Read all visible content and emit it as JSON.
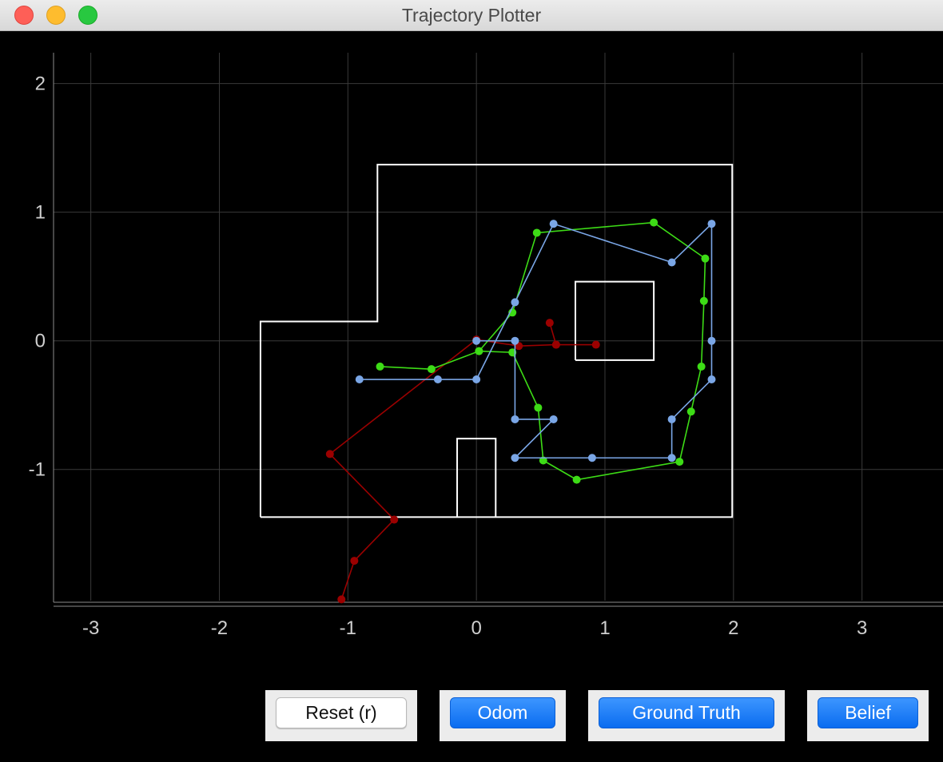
{
  "window": {
    "title": "Trajectory Plotter"
  },
  "buttons": {
    "reset": "Reset (r)",
    "odom": "Odom",
    "ground_truth": "Ground Truth",
    "belief": "Belief"
  },
  "colors": {
    "odom": "#9b0000",
    "ground_truth": "#3ddc16",
    "belief": "#7aa6e6",
    "map": "#ffffff",
    "grid": "#3a3a3a",
    "tick_text": "#cfcfcf"
  },
  "chart_data": {
    "type": "line",
    "title": "",
    "xlabel": "",
    "ylabel": "",
    "grid": true,
    "x_ticks": [
      "-3",
      "-2",
      "-1",
      "0",
      "1",
      "2",
      "3"
    ],
    "y_ticks": [
      "2",
      "1",
      "0",
      "-1"
    ],
    "x_tick_values": [
      -3,
      -2,
      -1,
      0,
      1,
      2,
      3
    ],
    "y_tick_values": [
      2,
      1,
      0,
      -1
    ],
    "xlim": [
      -3.29,
      3.63
    ],
    "ylim": [
      -2.02,
      2.24
    ],
    "map_walls": [
      [
        [
          -1.68,
          -1.37
        ],
        [
          -1.68,
          0.15
        ],
        [
          -0.77,
          0.15
        ],
        [
          -0.77,
          1.37
        ],
        [
          1.99,
          1.37
        ],
        [
          1.99,
          -1.37
        ],
        [
          -1.68,
          -1.37
        ]
      ],
      [
        [
          0.77,
          -0.15
        ],
        [
          0.77,
          0.46
        ],
        [
          1.38,
          0.46
        ],
        [
          1.38,
          -0.15
        ],
        [
          0.77,
          -0.15
        ]
      ],
      [
        [
          -0.15,
          -1.37
        ],
        [
          -0.15,
          -0.76
        ],
        [
          0.15,
          -0.76
        ],
        [
          0.15,
          -1.37
        ]
      ]
    ],
    "series": [
      {
        "key": "odom",
        "x": [
          0.93,
          0.62,
          0.57,
          0.62,
          0.33,
          0.0,
          -1.14,
          -0.64,
          -0.95,
          -1.05
        ],
        "y": [
          -0.03,
          -0.03,
          0.14,
          -0.03,
          -0.04,
          0.01,
          -0.88,
          -1.39,
          -1.71,
          -2.01
        ]
      },
      {
        "key": "ground_truth",
        "x": [
          0.02,
          0.28,
          0.48,
          0.52,
          0.78,
          1.58,
          1.67,
          1.75,
          1.77,
          1.78,
          1.38,
          0.47,
          0.28,
          0.02,
          -0.35,
          -0.75
        ],
        "y": [
          -0.08,
          -0.09,
          -0.52,
          -0.93,
          -1.08,
          -0.94,
          -0.55,
          -0.2,
          0.31,
          0.64,
          0.92,
          0.84,
          0.22,
          -0.08,
          -0.22,
          -0.2
        ]
      },
      {
        "key": "belief",
        "x": [
          0.0,
          0.3,
          0.3,
          0.6,
          0.3,
          0.9,
          1.52,
          1.52,
          1.83,
          1.83,
          1.83,
          1.52,
          0.6,
          0.3,
          0.0,
          -0.3,
          -0.91
        ],
        "y": [
          0.0,
          0.0,
          -0.61,
          -0.61,
          -0.91,
          -0.91,
          -0.91,
          -0.61,
          -0.3,
          0.0,
          0.91,
          0.61,
          0.91,
          0.3,
          -0.3,
          -0.3,
          -0.3
        ]
      }
    ]
  }
}
